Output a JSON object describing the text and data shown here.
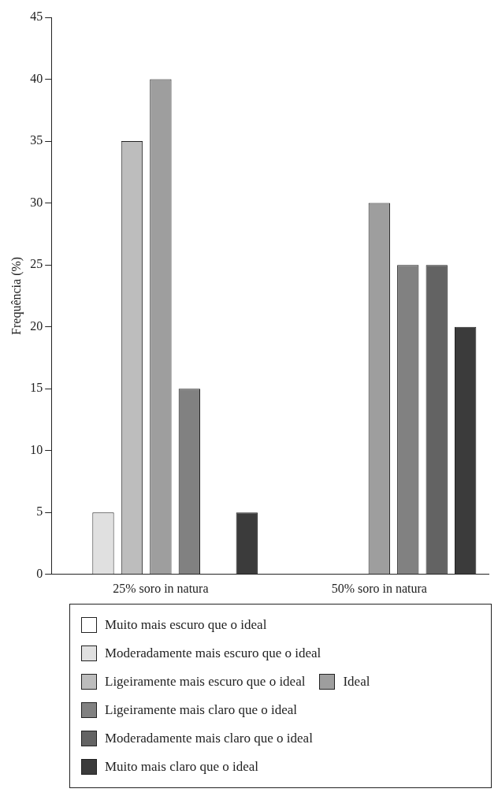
{
  "chart_data": {
    "type": "bar",
    "ylabel": "Frequência (%)",
    "categories": [
      "25% soro in natura",
      "50% soro in natura"
    ],
    "series": [
      {
        "name": "Muito mais escuro que o ideal",
        "color": "#ffffff",
        "values": [
          0,
          0
        ]
      },
      {
        "name": "Moderadamente mais escuro que o ideal",
        "color": "#e0e0e0",
        "values": [
          5,
          0
        ]
      },
      {
        "name": "Ligeiramente mais escuro que o ideal",
        "color": "#bdbdbd",
        "values": [
          35,
          0
        ]
      },
      {
        "name": "Ideal",
        "color": "#9e9e9e",
        "values": [
          40,
          30
        ]
      },
      {
        "name": "Ligeiramente mais claro que o ideal",
        "color": "#818181",
        "values": [
          15,
          25
        ]
      },
      {
        "name": "Moderadamente mais claro que o ideal",
        "color": "#636363",
        "values": [
          0,
          25
        ]
      },
      {
        "name": "Muito mais claro que o ideal",
        "color": "#3b3b3b",
        "values": [
          5,
          20
        ]
      }
    ],
    "ylim": [
      0,
      45
    ],
    "yticks": [
      0,
      5,
      10,
      15,
      20,
      25,
      30,
      35,
      40,
      45
    ],
    "grid": false,
    "legend": "bottom"
  }
}
